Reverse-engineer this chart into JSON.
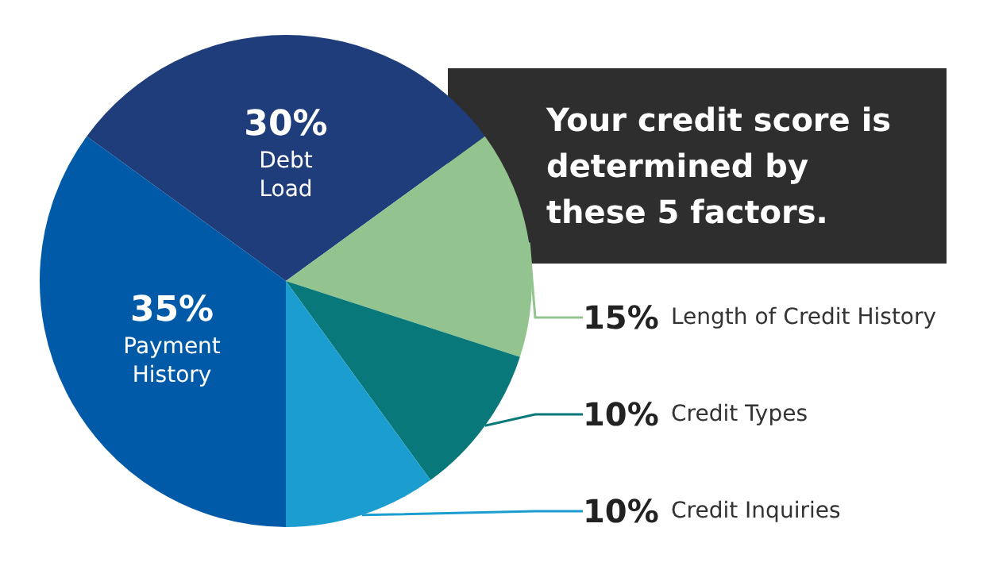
{
  "chart_data": {
    "type": "pie",
    "title": "Your credit score is determined by these 5 factors.",
    "categories": [
      "Debt Load",
      "Length of Credit History",
      "Credit Types",
      "Credit Inquiries",
      "Payment History"
    ],
    "values": [
      30,
      15,
      10,
      10,
      35
    ],
    "colors": [
      "#1f3d7a",
      "#93c48f",
      "#08787a",
      "#1b9dcf",
      "#005aa8"
    ],
    "value_labels": [
      "30%",
      "15%",
      "10%",
      "10%",
      "35%"
    ],
    "legend": false
  }
}
